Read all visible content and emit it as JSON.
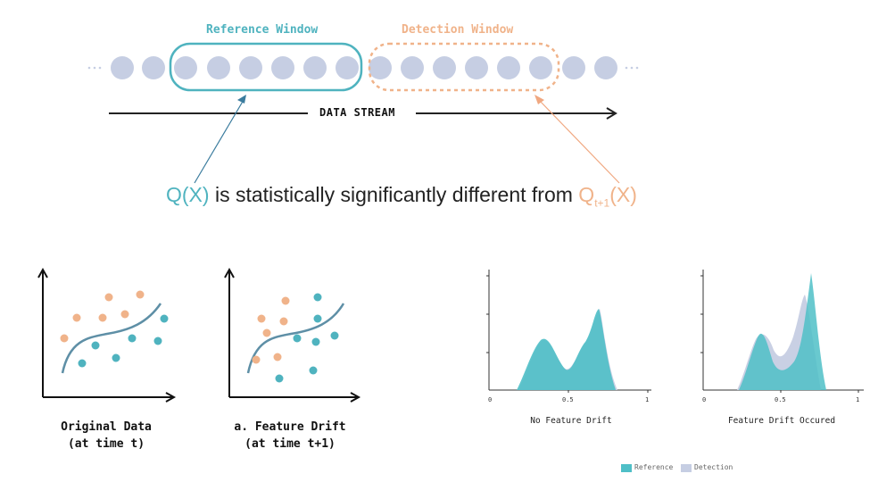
{
  "stream": {
    "reference_label": "Reference Window",
    "detection_label": "Detection Window",
    "axis_label": "DATA STREAM",
    "colors": {
      "reference": "#4fb3bf",
      "detection": "#f0b38a",
      "dot": "#c6cee3"
    }
  },
  "statement": {
    "q_ref": "Q(X)",
    "middle": " is statistically significantly different from ",
    "q_det": "Q",
    "q_det_sub": "t+1",
    "q_det_tail": "(X)"
  },
  "scatter_panels": [
    {
      "caption_line1": "Original Data",
      "caption_line2": "(at time t)"
    },
    {
      "caption_line1": "a. Feature Drift",
      "caption_line2": "(at time t+1)"
    }
  ],
  "distribution_panels": [
    {
      "caption": "No Feature Drift",
      "ticks": [
        "0",
        "0.5",
        "1"
      ]
    },
    {
      "caption": "Feature Drift Occured",
      "ticks": [
        "0",
        "0.5",
        "1"
      ]
    }
  ],
  "legend": {
    "reference": "Reference",
    "detection": "Detection"
  }
}
